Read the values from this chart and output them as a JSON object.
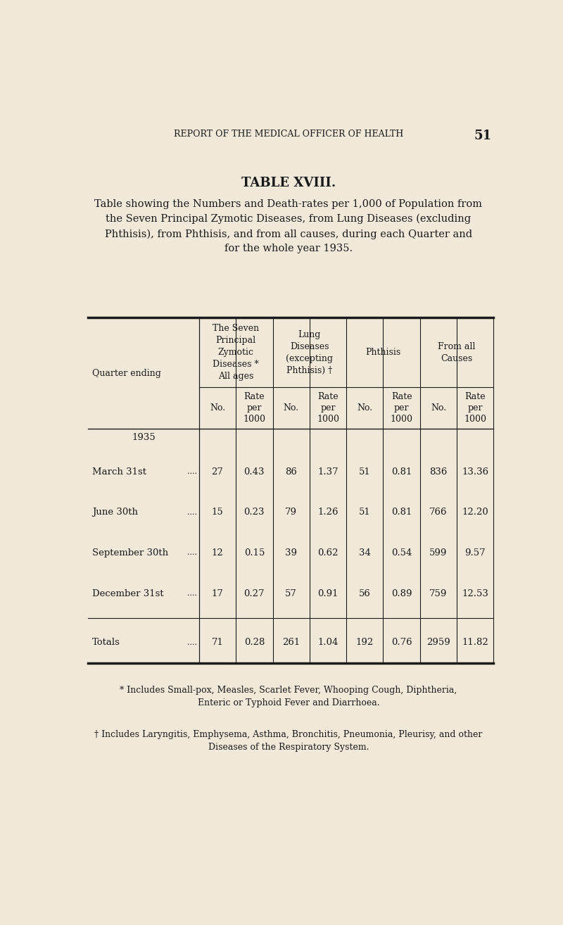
{
  "page_header": "REPORT OF THE MEDICAL OFFICER OF HEALTH",
  "page_number": "51",
  "table_title": "TABLE XVIII.",
  "table_subtitle": "Table showing the Numbers and Death-rates per 1,000 of Population from\nthe Seven Principal Zymotic Diseases, from Lung Diseases (excluding\nPhthisis), from Phthisis, and from all causes, during each Quarter and\nfor the whole year 1935.",
  "col_group_headers": [
    "The Seven\nPrincipal\nZymotic\nDiseases *\nAll ages",
    "Lung\nDiseases\n(excepting\nPhthisis) †",
    "Phthisis",
    "From all\nCauses"
  ],
  "sub_headers": [
    "No.",
    "Rate\nper\n1000"
  ],
  "row_label_header": "Quarter ending",
  "year_label": "1935",
  "rows": [
    {
      "label": "March 31st",
      "dots": "....",
      "vals": [
        27,
        0.43,
        86,
        1.37,
        51,
        0.81,
        836,
        13.36
      ]
    },
    {
      "label": "June 30th",
      "dots": "....",
      "vals": [
        15,
        0.23,
        79,
        1.26,
        51,
        0.81,
        766,
        12.2
      ]
    },
    {
      "label": "September 30th",
      "dots": "....",
      "vals": [
        12,
        0.15,
        39,
        0.62,
        34,
        0.54,
        599,
        9.57
      ]
    },
    {
      "label": "December 31st",
      "dots": "....",
      "vals": [
        17,
        0.27,
        57,
        0.91,
        56,
        0.89,
        759,
        12.53
      ]
    }
  ],
  "totals_row": {
    "label": "Totals",
    "dots": "....",
    "vals": [
      71,
      0.28,
      261,
      1.04,
      192,
      0.76,
      2959,
      11.82
    ]
  },
  "footnote1": "* Includes Small-pox, Measles, Scarlet Fever, Whooping Cough, Diphtheria,\nEnteric or Typhoid Fever and Diarrhoea.",
  "footnote2": "† Includes Laryngitis, Emphysema, Asthma, Bronchitis, Pneumonia, Pleurisy, and other\nDiseases of the Respiratory System.",
  "bg_color": "#f0e8d8",
  "text_color": "#1a1a1a",
  "line_color": "#1a1a1a"
}
